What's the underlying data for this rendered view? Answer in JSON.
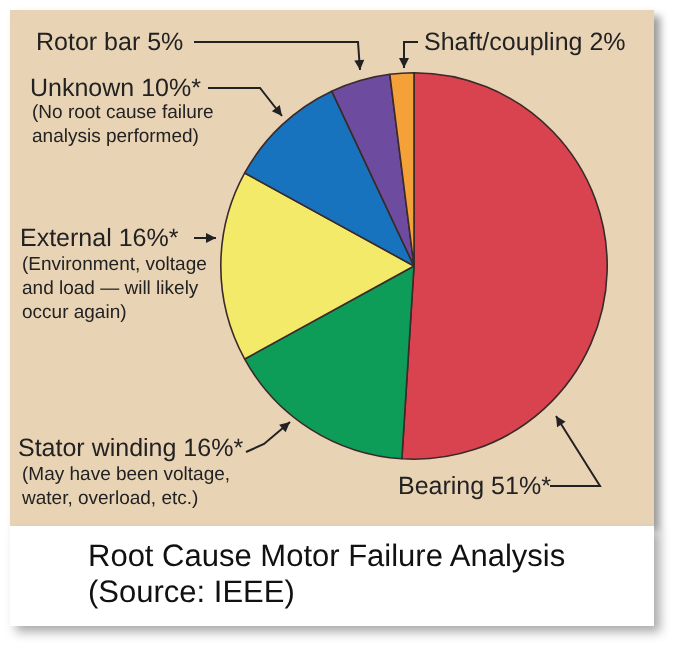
{
  "chart_data": {
    "type": "pie",
    "title": "Root Cause Motor Failure Analysis",
    "categories": [
      "Bearing",
      "Stator winding",
      "External",
      "Unknown",
      "Rotor bar",
      "Shaft/coupling"
    ],
    "values": [
      51,
      16,
      16,
      10,
      5,
      2
    ],
    "value_labels": [
      "51%*",
      "16%*",
      "16%*",
      "10%*",
      "5%",
      "2%"
    ],
    "colors": [
      "#d9434f",
      "#0e9d58",
      "#f3ea6a",
      "#1773bd",
      "#6d4c9f",
      "#f4a13a"
    ],
    "annotations": [
      {
        "text": "(May have been voltage, water, overload, etc.)",
        "x": "Stator winding"
      },
      {
        "text": "(Environment, voltage and load — will likely occur again)",
        "x": "External"
      },
      {
        "text": "(No root cause failure analysis performed)",
        "x": "Unknown"
      },
      "(Source: IEEE)"
    ],
    "legend": false
  }
}
